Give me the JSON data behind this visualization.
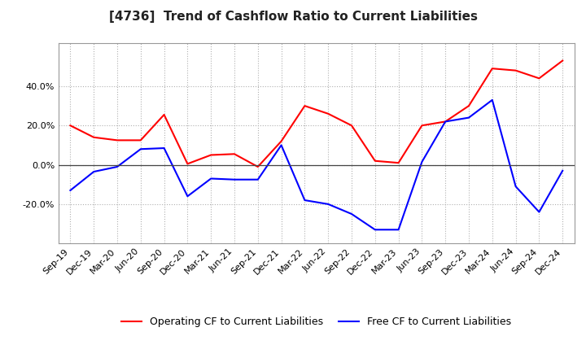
{
  "title": "[4736]  Trend of Cashflow Ratio to Current Liabilities",
  "x_labels": [
    "Sep-19",
    "Dec-19",
    "Mar-20",
    "Jun-20",
    "Sep-20",
    "Dec-20",
    "Mar-21",
    "Jun-21",
    "Sep-21",
    "Dec-21",
    "Mar-22",
    "Jun-22",
    "Sep-22",
    "Dec-22",
    "Mar-23",
    "Jun-23",
    "Sep-23",
    "Dec-23",
    "Mar-24",
    "Jun-24",
    "Sep-24",
    "Dec-24"
  ],
  "operating_cf": [
    20.0,
    14.0,
    12.5,
    12.5,
    25.5,
    0.5,
    5.0,
    5.5,
    -1.0,
    12.0,
    30.0,
    26.0,
    20.0,
    2.0,
    1.0,
    20.0,
    22.0,
    30.0,
    49.0,
    48.0,
    44.0,
    53.0
  ],
  "free_cf": [
    -13.0,
    -3.5,
    -1.0,
    8.0,
    8.5,
    -16.0,
    -7.0,
    -7.5,
    -7.5,
    10.0,
    -18.0,
    -20.0,
    -25.0,
    -33.0,
    -33.0,
    1.5,
    22.0,
    24.0,
    33.0,
    -11.0,
    -24.0,
    -3.0
  ],
  "operating_color": "#ff0000",
  "free_color": "#0000ff",
  "background_color": "#ffffff",
  "plot_bg_color": "#ffffff",
  "grid_color": "#b0b0b0",
  "ylim": [
    -40,
    62
  ],
  "yticks": [
    -20.0,
    0.0,
    20.0,
    40.0
  ],
  "legend_op": "Operating CF to Current Liabilities",
  "legend_free": "Free CF to Current Liabilities",
  "title_fontsize": 11,
  "axis_fontsize": 8,
  "legend_fontsize": 9
}
